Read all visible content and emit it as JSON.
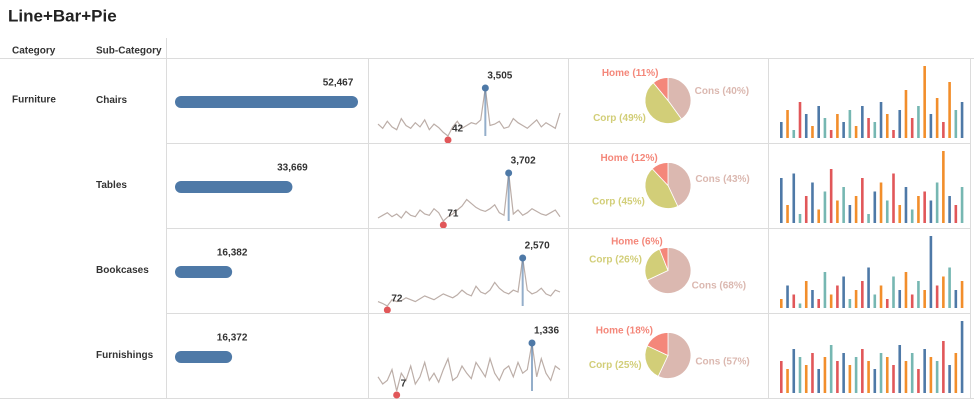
{
  "title": "Line+Bar+Pie",
  "headers": [
    "Category",
    "Sub-Category"
  ],
  "category": "Furniture",
  "line_color": "#bcaea8",
  "bar_color": "#4e79a7",
  "max_color": "#4e79a7",
  "min_color": "#e15759",
  "rows": [
    {
      "sub_category": "Chairs",
      "bar": {
        "value": 52467,
        "label": "52,467"
      },
      "line": {
        "values": [
          900,
          600,
          1100,
          700,
          500,
          1300,
          800,
          600,
          1000,
          700,
          1200,
          500,
          900,
          650,
          300,
          42,
          700,
          1100,
          600,
          800,
          1000,
          900,
          1200,
          3505,
          800,
          900,
          1100,
          600,
          700,
          1300,
          1000,
          800,
          600,
          900,
          1200,
          700,
          1000,
          800,
          600,
          1700
        ],
        "max_label": "3,505"
      },
      "pie": [
        {
          "name": "Cons",
          "value": 40,
          "label": "Cons (40%)",
          "color": "#dbb8b0"
        },
        {
          "name": "Corp",
          "value": 49,
          "label": "Corp (49%)",
          "color": "#d2ce78"
        },
        {
          "name": "Home",
          "value": 11,
          "label": "Home (11%)",
          "color": "#f4877a"
        }
      ],
      "mini": {
        "values": [
          20,
          35,
          10,
          45,
          30,
          15,
          40,
          25,
          10,
          30,
          20,
          35,
          15,
          40,
          25,
          20,
          45,
          30,
          10,
          35,
          60,
          25,
          40,
          90,
          30,
          50,
          20,
          70,
          35,
          45
        ],
        "colors": [
          "#4e79a7",
          "#f28e2b",
          "#76b7b2",
          "#e15759",
          "#4e79a7",
          "#f28e2b",
          "#4e79a7",
          "#76b7b2",
          "#e15759",
          "#f28e2b",
          "#4e79a7",
          "#76b7b2",
          "#f28e2b",
          "#4e79a7",
          "#e15759",
          "#76b7b2",
          "#4e79a7",
          "#f28e2b",
          "#e15759",
          "#4e79a7",
          "#f28e2b",
          "#e15759",
          "#76b7b2",
          "#f28e2b",
          "#4e79a7",
          "#f28e2b",
          "#e15759",
          "#f28e2b",
          "#76b7b2",
          "#4e79a7"
        ]
      }
    },
    {
      "sub_category": "Tables",
      "bar": {
        "value": 33669,
        "label": "33,669"
      },
      "line": {
        "values": [
          300,
          500,
          700,
          400,
          600,
          300,
          800,
          500,
          400,
          900,
          600,
          500,
          1000,
          700,
          71,
          400,
          600,
          900,
          1200,
          1700,
          1400,
          1100,
          900,
          800,
          1000,
          1300,
          700,
          500,
          3702,
          600,
          900,
          500,
          700,
          1000,
          800,
          600,
          500,
          700,
          900,
          400
        ],
        "max_label": "3,702"
      },
      "pie": [
        {
          "name": "Cons",
          "value": 43,
          "label": "Cons (43%)",
          "color": "#dbb8b0"
        },
        {
          "name": "Corp",
          "value": 45,
          "label": "Corp (45%)",
          "color": "#d2ce78"
        },
        {
          "name": "Home",
          "value": 12,
          "label": "Home (12%)",
          "color": "#f4877a"
        }
      ],
      "mini": {
        "values": [
          50,
          20,
          55,
          10,
          30,
          45,
          15,
          35,
          60,
          25,
          40,
          20,
          30,
          50,
          10,
          35,
          45,
          25,
          55,
          20,
          40,
          15,
          30,
          35,
          25,
          45,
          80,
          30,
          20,
          40
        ],
        "colors": [
          "#4e79a7",
          "#f28e2b",
          "#4e79a7",
          "#76b7b2",
          "#e15759",
          "#4e79a7",
          "#f28e2b",
          "#76b7b2",
          "#e15759",
          "#f28e2b",
          "#76b7b2",
          "#4e79a7",
          "#f28e2b",
          "#e15759",
          "#76b7b2",
          "#4e79a7",
          "#f28e2b",
          "#76b7b2",
          "#e15759",
          "#f28e2b",
          "#4e79a7",
          "#76b7b2",
          "#f28e2b",
          "#e15759",
          "#4e79a7",
          "#76b7b2",
          "#f28e2b",
          "#4e79a7",
          "#e15759",
          "#76b7b2"
        ]
      }
    },
    {
      "sub_category": "Bookcases",
      "bar": {
        "value": 16382,
        "label": "16,382"
      },
      "line": {
        "values": [
          300,
          200,
          72,
          400,
          300,
          350,
          500,
          400,
          300,
          450,
          600,
          500,
          400,
          550,
          700,
          600,
          500,
          650,
          900,
          700,
          600,
          1100,
          800,
          700,
          900,
          1300,
          1000,
          800,
          700,
          900,
          800,
          2570,
          900,
          700,
          800,
          1000,
          700,
          600,
          900,
          800
        ],
        "max_label": "2,570"
      },
      "pie": [
        {
          "name": "Cons",
          "value": 68,
          "label": "Cons (68%)",
          "color": "#dbb8b0"
        },
        {
          "name": "Corp",
          "value": 26,
          "label": "Corp (26%)",
          "color": "#d2ce78"
        },
        {
          "name": "Home",
          "value": 6,
          "label": "Home (6%)",
          "color": "#f4877a"
        }
      ],
      "mini": {
        "values": [
          10,
          25,
          15,
          5,
          30,
          20,
          10,
          40,
          15,
          25,
          35,
          10,
          20,
          30,
          45,
          15,
          25,
          10,
          35,
          20,
          40,
          15,
          30,
          20,
          80,
          25,
          35,
          45,
          20,
          30
        ],
        "colors": [
          "#f28e2b",
          "#4e79a7",
          "#e15759",
          "#76b7b2",
          "#f28e2b",
          "#4e79a7",
          "#e15759",
          "#76b7b2",
          "#f28e2b",
          "#e15759",
          "#4e79a7",
          "#76b7b2",
          "#f28e2b",
          "#e15759",
          "#4e79a7",
          "#76b7b2",
          "#f28e2b",
          "#e15759",
          "#76b7b2",
          "#4e79a7",
          "#f28e2b",
          "#e15759",
          "#76b7b2",
          "#f28e2b",
          "#4e79a7",
          "#e15759",
          "#f28e2b",
          "#76b7b2",
          "#4e79a7",
          "#f28e2b"
        ]
      }
    },
    {
      "sub_category": "Furnishings",
      "bar": {
        "value": 16372,
        "label": "16,372"
      },
      "line": {
        "values": [
          400,
          200,
          300,
          600,
          7,
          500,
          300,
          700,
          200,
          400,
          800,
          300,
          500,
          250,
          600,
          900,
          300,
          400,
          700,
          500,
          350,
          800,
          600,
          400,
          900,
          500,
          300,
          600,
          700,
          400,
          800,
          500,
          600,
          1336,
          400,
          900,
          500,
          300,
          700,
          600
        ],
        "max_label": "1,336"
      },
      "pie": [
        {
          "name": "Cons",
          "value": 57,
          "label": "Cons (57%)",
          "color": "#dbb8b0"
        },
        {
          "name": "Corp",
          "value": 25,
          "label": "Corp (25%)",
          "color": "#d2ce78"
        },
        {
          "name": "Home",
          "value": 18,
          "label": "Home (18%)",
          "color": "#f4877a"
        }
      ],
      "mini": {
        "values": [
          40,
          30,
          55,
          45,
          35,
          50,
          30,
          45,
          60,
          40,
          50,
          35,
          45,
          55,
          40,
          30,
          50,
          45,
          35,
          60,
          40,
          50,
          30,
          55,
          45,
          40,
          65,
          35,
          50,
          90
        ],
        "colors": [
          "#e15759",
          "#f28e2b",
          "#4e79a7",
          "#76b7b2",
          "#f28e2b",
          "#e15759",
          "#4e79a7",
          "#f28e2b",
          "#76b7b2",
          "#e15759",
          "#4e79a7",
          "#f28e2b",
          "#76b7b2",
          "#e15759",
          "#f28e2b",
          "#4e79a7",
          "#76b7b2",
          "#f28e2b",
          "#e15759",
          "#4e79a7",
          "#f28e2b",
          "#76b7b2",
          "#e15759",
          "#4e79a7",
          "#f28e2b",
          "#76b7b2",
          "#e15759",
          "#4e79a7",
          "#f28e2b",
          "#4e79a7"
        ]
      }
    }
  ]
}
